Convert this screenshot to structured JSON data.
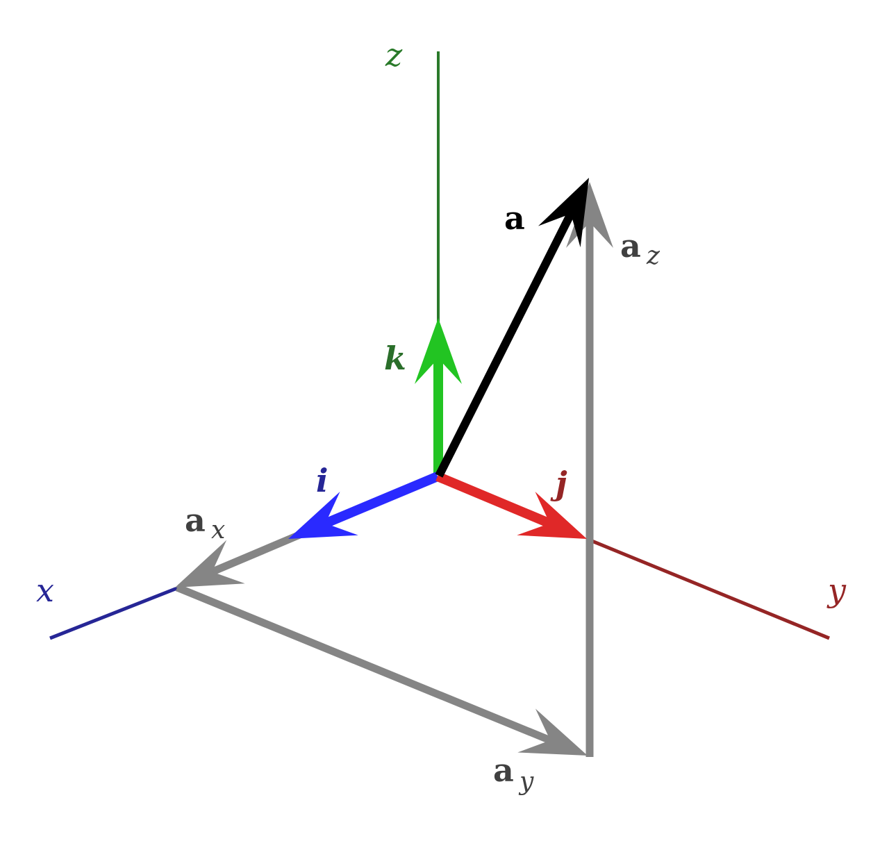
{
  "labels": {
    "x_axis": "x",
    "y_axis": "y",
    "z_axis": "z",
    "i": "i",
    "j": "j",
    "k": "k",
    "a": "a",
    "ax_base": "a",
    "ax_sub": "x",
    "ay_base": "a",
    "ay_sub": "y",
    "az_base": "a",
    "az_sub": "z"
  },
  "colors": {
    "x_axis": "#262696",
    "y_axis": "#952525",
    "z_axis": "#2a7a2a",
    "i_vector": "#2a2aff",
    "j_vector": "#e02828",
    "k_vector": "#22c422",
    "components": "#858585",
    "a_vector": "#000000",
    "component_label": "#404040"
  }
}
